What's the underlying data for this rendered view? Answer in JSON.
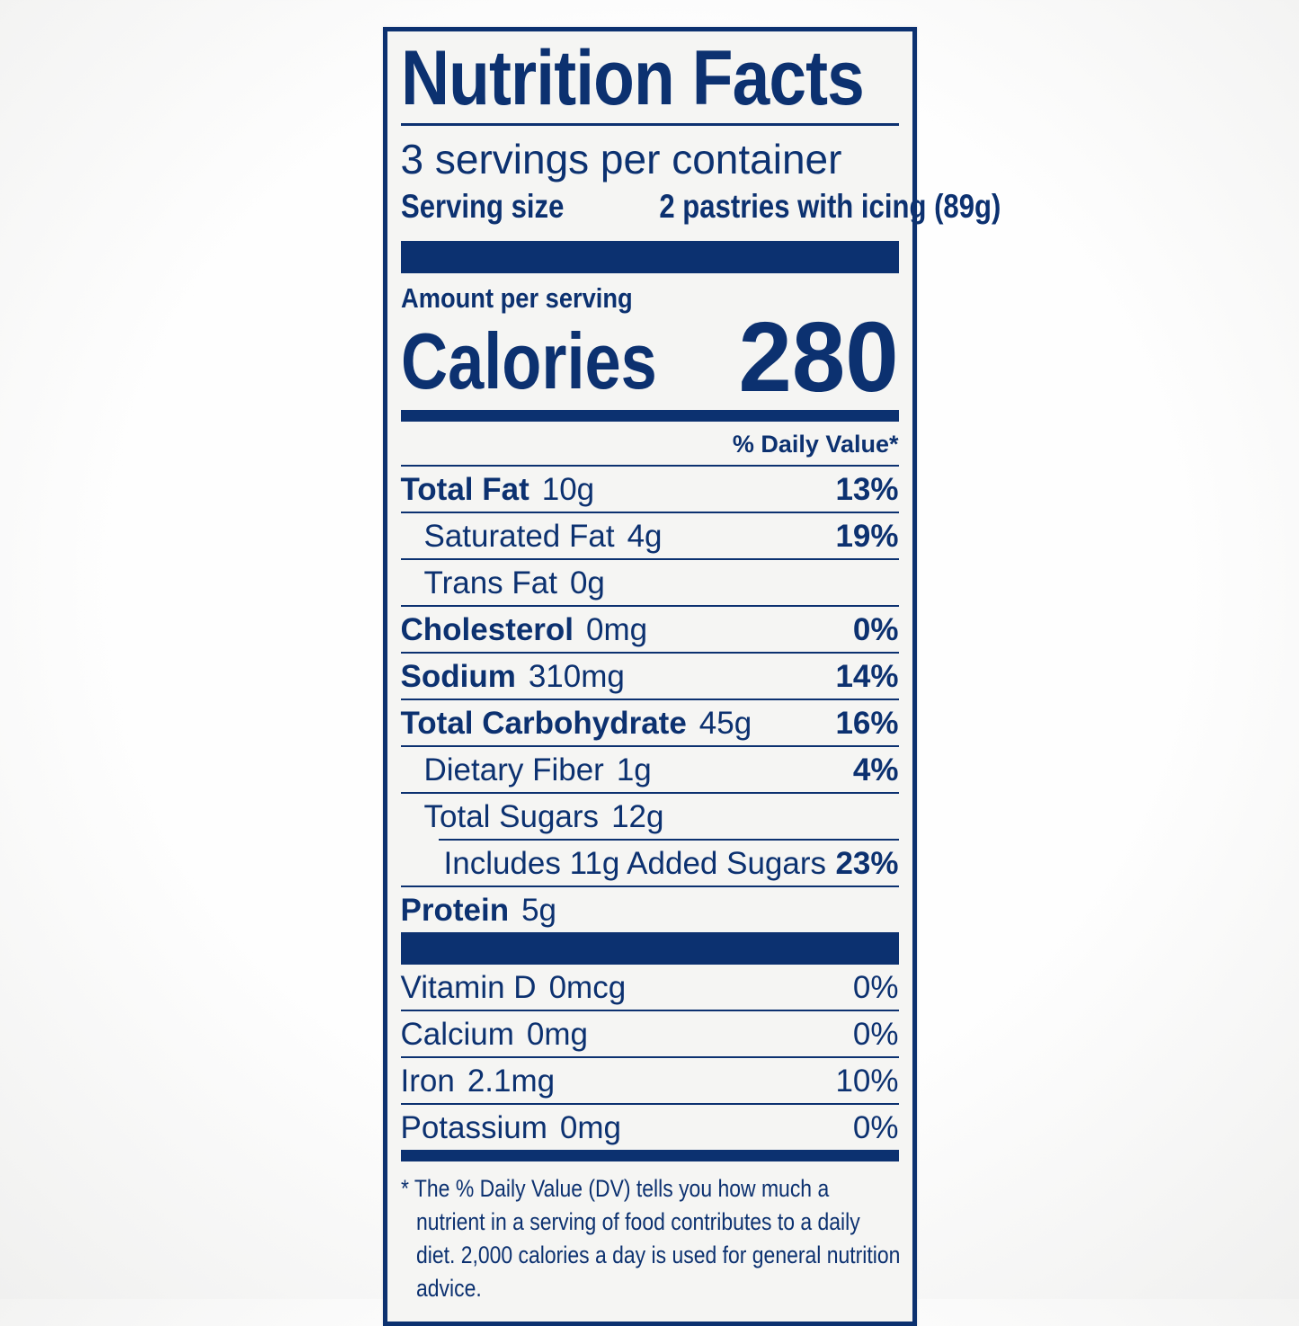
{
  "label": {
    "title": "Nutrition Facts",
    "servings_per_container": "3 servings per container",
    "serving_size_label": "Serving size",
    "serving_size_value": "2 pastries with icing (89g)",
    "amount_per_serving": "Amount per serving",
    "calories_label": "Calories",
    "calories_value": "280",
    "daily_value_header": "% Daily Value*",
    "nutrients": [
      {
        "name": "Total Fat",
        "amount": "10g",
        "dv": "13%",
        "bold": true,
        "indent": 0
      },
      {
        "name": "Saturated Fat",
        "amount": "4g",
        "dv": "19%",
        "bold": false,
        "indent": 1
      },
      {
        "name": "Trans Fat",
        "amount": "0g",
        "dv": "",
        "bold": false,
        "indent": 1
      },
      {
        "name": "Cholesterol",
        "amount": "0mg",
        "dv": "0%",
        "bold": true,
        "indent": 0
      },
      {
        "name": "Sodium",
        "amount": "310mg",
        "dv": "14%",
        "bold": true,
        "indent": 0
      },
      {
        "name": "Total Carbohydrate",
        "amount": "45g",
        "dv": "16%",
        "bold": true,
        "indent": 0
      },
      {
        "name": "Dietary Fiber",
        "amount": "1g",
        "dv": "4%",
        "bold": false,
        "indent": 1
      },
      {
        "name": "Total Sugars",
        "amount": "12g",
        "dv": "",
        "bold": false,
        "indent": 1
      },
      {
        "name": "Includes 11g Added Sugars",
        "amount": "",
        "dv": "23%",
        "bold": false,
        "indent": 2
      },
      {
        "name": "Protein",
        "amount": "5g",
        "dv": "",
        "bold": true,
        "indent": 0
      }
    ],
    "micronutrients": [
      {
        "name": "Vitamin D",
        "amount": "0mcg",
        "dv": "0%"
      },
      {
        "name": "Calcium",
        "amount": "0mg",
        "dv": "0%"
      },
      {
        "name": "Iron",
        "amount": "2.1mg",
        "dv": "10%"
      },
      {
        "name": "Potassium",
        "amount": "0mg",
        "dv": "0%"
      }
    ],
    "footnote": "* The % Daily Value (DV) tells you how much a nutrient in a serving of food contributes to a daily diet. 2,000 calories a day is used for general nutrition advice."
  },
  "colors": {
    "navy": "#0c3170",
    "label_background": "#f5f5f3"
  }
}
